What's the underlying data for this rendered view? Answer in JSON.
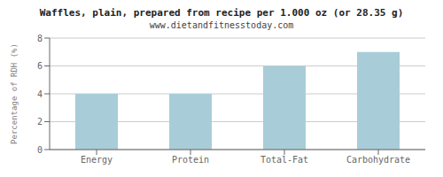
{
  "chart_data": {
    "type": "bar",
    "title": "Waffles, plain, prepared from recipe per 1.000 oz (or 28.35 g)",
    "subtitle": "www.dietandfitnesstoday.com",
    "categories": [
      "Energy",
      "Protein",
      "Total-Fat",
      "Carbohydrate"
    ],
    "values": [
      4.0,
      4.0,
      6.0,
      7.0
    ],
    "color": "#a8cdd8",
    "ylabel": "Percentage of RDH (%)",
    "ylim": [
      0,
      8
    ],
    "yticks": [
      0,
      2,
      4,
      6,
      8
    ],
    "grid": true
  }
}
